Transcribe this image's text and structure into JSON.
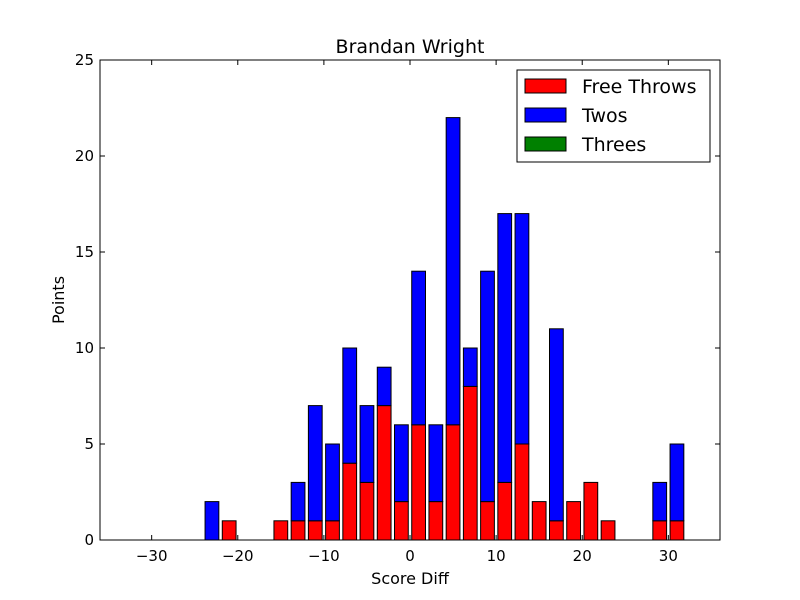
{
  "chart_data": {
    "type": "bar",
    "stacked": true,
    "title": "Brandan Wright",
    "xlabel": "Score Diff",
    "ylabel": "Points",
    "xlim": [
      -36,
      36
    ],
    "ylim": [
      0,
      25
    ],
    "xticks": [
      -30,
      -20,
      -10,
      0,
      10,
      20,
      30
    ],
    "yticks": [
      0,
      5,
      10,
      15,
      20,
      25
    ],
    "xtick_labels": [
      "−30",
      "−20",
      "−10",
      "0",
      "10",
      "20",
      "30"
    ],
    "ytick_labels": [
      "0",
      "5",
      "10",
      "15",
      "20",
      "25"
    ],
    "bar_width": 1.6,
    "x": [
      -35,
      -33,
      -31,
      -29,
      -27,
      -25,
      -23,
      -21,
      -19,
      -17,
      -15,
      -13,
      -11,
      -9,
      -7,
      -5,
      -3,
      -1,
      1,
      3,
      5,
      7,
      9,
      11,
      13,
      15,
      17,
      19,
      21,
      23,
      25,
      27,
      29,
      31,
      33,
      35
    ],
    "series": [
      {
        "name": "Free Throws",
        "color": "#ff0000",
        "values": [
          0,
          0,
          0,
          0,
          0,
          0,
          0,
          1,
          0,
          0,
          1,
          1,
          1,
          1,
          4,
          3,
          7,
          2,
          6,
          2,
          6,
          8,
          2,
          3,
          5,
          2,
          1,
          2,
          3,
          1,
          0,
          0,
          1,
          1,
          0,
          0
        ]
      },
      {
        "name": "Twos",
        "color": "#0000ff",
        "values": [
          0,
          0,
          0,
          0,
          0,
          0,
          2,
          0,
          0,
          0,
          0,
          2,
          6,
          4,
          6,
          4,
          2,
          4,
          8,
          4,
          16,
          2,
          12,
          14,
          12,
          0,
          10,
          0,
          0,
          0,
          0,
          0,
          2,
          4,
          0,
          0
        ]
      },
      {
        "name": "Threes",
        "color": "#008000",
        "values": [
          0,
          0,
          0,
          0,
          0,
          0,
          0,
          0,
          0,
          0,
          0,
          0,
          0,
          0,
          0,
          0,
          0,
          0,
          0,
          0,
          0,
          0,
          0,
          0,
          0,
          0,
          0,
          0,
          0,
          0,
          0,
          0,
          0,
          0,
          0,
          0
        ]
      }
    ],
    "legend_position": "top-right",
    "grid": false
  }
}
